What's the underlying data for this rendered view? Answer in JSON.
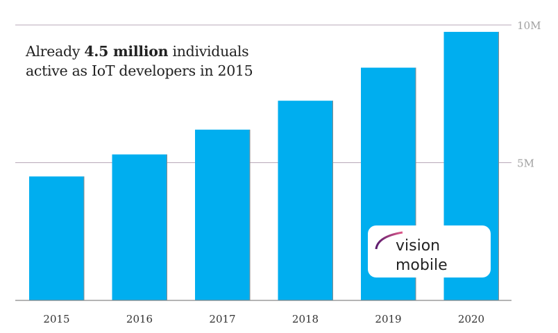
{
  "chart_data": {
    "type": "bar",
    "categories": [
      "2015",
      "2016",
      "2017",
      "2018",
      "2019",
      "2020"
    ],
    "values": [
      4.5,
      5.3,
      6.2,
      7.25,
      8.45,
      9.75
    ],
    "unit": "million IoT developers",
    "ylim": [
      0,
      10
    ],
    "yticks": [
      {
        "value": 5,
        "label": "5M"
      },
      {
        "value": 10,
        "label": "10M"
      }
    ],
    "y_axis_position": "right",
    "grid": true,
    "bar_color": "#00AEEF",
    "annotation": {
      "line1_prefix": "Already ",
      "line1_bold": "4.5 million",
      "line1_suffix": " individuals",
      "line2": "active as IoT developers in 2015"
    }
  },
  "logo": {
    "text": "vision mobile"
  }
}
